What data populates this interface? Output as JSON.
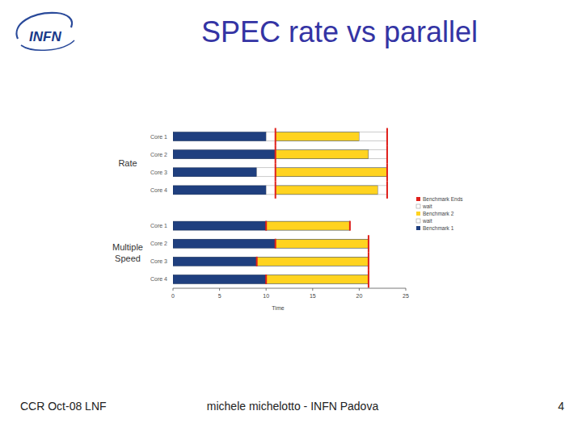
{
  "slide": {
    "logo": "INFN",
    "title": "SPEC rate vs parallel",
    "footer_left": "CCR Oct-08 LNF",
    "footer_center": "michele michelotto - INFN Padova",
    "page_number": 4
  },
  "chart_data": {
    "type": "bar",
    "orientation": "horizontal",
    "stacked": true,
    "xlabel": "Time",
    "categories": [
      "Core 1",
      "Core 2",
      "Core 3",
      "Core 4",
      "Core 1",
      "Core 2",
      "Core 3",
      "Core 4"
    ],
    "group_labels": [
      "Rate",
      "Multiple Speed"
    ],
    "series": [
      {
        "name": "Benchmark 1",
        "color": "#1f3f7f",
        "values": [
          10,
          11,
          9,
          10,
          10,
          11,
          9,
          10
        ]
      },
      {
        "name": "wait",
        "color": "#ffffff",
        "values": [
          1,
          0,
          2,
          1,
          0,
          0,
          0,
          0
        ]
      },
      {
        "name": "Benchmark 2",
        "color": "#ffd320",
        "values": [
          9,
          10,
          12,
          11,
          9,
          10,
          12,
          11
        ]
      },
      {
        "name": "wait",
        "color": "#ffffff",
        "values": [
          3,
          2,
          0,
          1,
          0,
          0,
          0,
          0
        ]
      },
      {
        "name": "Benchmark Ends",
        "color": "#e0201b",
        "type": "marker",
        "values": [
          [
            11,
            23
          ],
          [
            11,
            23
          ],
          [
            11,
            23
          ],
          [
            11,
            23
          ],
          [
            10,
            19
          ],
          [
            11,
            21
          ],
          [
            9,
            21
          ],
          [
            10,
            21
          ]
        ]
      }
    ],
    "xlim": [
      0,
      25
    ],
    "xticks": [
      0,
      5,
      10,
      15,
      20,
      25
    ],
    "grid": false,
    "legend": "right"
  }
}
